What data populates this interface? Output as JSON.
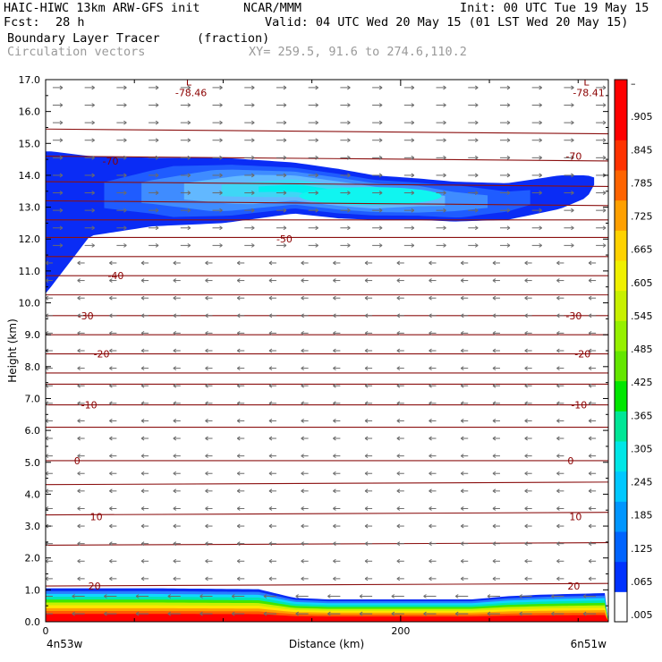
{
  "header": {
    "model": "HAIC-HIWC 13km ARW-GFS init",
    "org": "NCAR/MMM",
    "init": "Init: 00 UTC Tue 19 May 15",
    "fcst_label": "Fcst:",
    "fcst_value": "28 h",
    "valid": "Valid: 04 UTC Wed 20 May 15 (01 LST Wed 20 May 15)",
    "field": "Boundary Layer Tracer",
    "units": "(fraction)",
    "overlay": "Circulation vectors",
    "xy": "XY= 259.5, 91.6 to 274.6,110.2"
  },
  "chart_data": {
    "type": "heatmap",
    "xlabel": "Distance (km)",
    "ylabel": "Height (km)",
    "xlim": [
      0,
      317
    ],
    "ylim": [
      0,
      17
    ],
    "y_ticks": [
      "0.0",
      "1.0",
      "2.0",
      "3.0",
      "4.0",
      "5.0",
      "6.0",
      "7.0",
      "8.0",
      "9.0",
      "10.0",
      "11.0",
      "12.0",
      "13.0",
      "14.0",
      "15.0",
      "16.0",
      "17.0"
    ],
    "x_ticks": [
      {
        "value": 0,
        "label": "0"
      },
      {
        "value": 200,
        "label": "200"
      }
    ],
    "x_endpoints": {
      "left": "4n53w",
      "right": "6n51w"
    },
    "colorbar": {
      "labels": [
        ".005",
        ".065",
        ".125",
        ".185",
        ".245",
        ".305",
        ".365",
        ".425",
        ".485",
        ".545",
        ".605",
        ".665",
        ".725",
        ".785",
        ".845",
        ".905",
        "–"
      ],
      "colors": [
        "#ffffff",
        "#0032ff",
        "#0064ff",
        "#0096ff",
        "#00c8ff",
        "#00e6e6",
        "#00e696",
        "#00e600",
        "#64e600",
        "#96f000",
        "#c8f000",
        "#f0f000",
        "#ffd200",
        "#ffa000",
        "#ff6400",
        "#ff3200",
        "#ff0000",
        "#ff0000"
      ]
    },
    "tracer_regions": [
      {
        "name": "upper layer",
        "x_left": [
          0,
          3,
          25,
          60,
          100,
          140,
          165,
          185,
          210,
          230,
          260,
          290,
          305,
          311
        ],
        "top_km": [
          14.75,
          14.75,
          14.6,
          14.55,
          14.55,
          14.4,
          14.2,
          14.0,
          13.9,
          13.8,
          13.75,
          14.0,
          14.0,
          13.9
        ],
        "bottom_km": [
          10.3,
          10.5,
          12.1,
          12.4,
          12.5,
          12.8,
          12.65,
          12.6,
          12.6,
          12.55,
          12.6,
          12.95,
          13.3,
          13.9
        ],
        "core_value": 0.2
      },
      {
        "name": "boundary layer",
        "x_left": [
          0,
          60,
          120,
          140,
          160,
          200,
          240,
          260,
          280,
          317
        ],
        "top_km": [
          1.05,
          1.05,
          1.02,
          0.75,
          0.7,
          0.7,
          0.7,
          0.8,
          0.85,
          0.9
        ],
        "core_value": 0.9
      }
    ],
    "isotherms": [
      {
        "label": "-78.46",
        "x": 73,
        "y": 16.6,
        "low_marker": "L"
      },
      {
        "label": "-78.41",
        "x": 297,
        "y": 16.6,
        "low_marker": "L"
      },
      {
        "label": "-70",
        "x": 32,
        "y": 14.45
      },
      {
        "label": "-70",
        "x": 293,
        "y": 14.6
      },
      {
        "label": "-50",
        "x": 130,
        "y": 12.0
      },
      {
        "label": "-40",
        "x": 35,
        "y": 10.85
      },
      {
        "label": "-30",
        "x": 18,
        "y": 9.6
      },
      {
        "label": "-30",
        "x": 293,
        "y": 9.6
      },
      {
        "label": "-20",
        "x": 27,
        "y": 8.4
      },
      {
        "label": "-20",
        "x": 298,
        "y": 8.4
      },
      {
        "label": "-10",
        "x": 20,
        "y": 6.8
      },
      {
        "label": "-10",
        "x": 296,
        "y": 6.8
      },
      {
        "label": "0",
        "x": 16,
        "y": 5.05
      },
      {
        "label": "0",
        "x": 294,
        "y": 5.05
      },
      {
        "label": "10",
        "x": 25,
        "y": 3.3
      },
      {
        "label": "10",
        "x": 295,
        "y": 3.3
      },
      {
        "label": "20",
        "x": 24,
        "y": 1.12
      },
      {
        "label": "20",
        "x": 294,
        "y": 1.12
      }
    ],
    "isotherm_levels_km": [
      15.45,
      14.6,
      13.8,
      13.2,
      12.6,
      12.05,
      11.45,
      10.85,
      10.25,
      9.6,
      9.0,
      8.4,
      7.8,
      7.45,
      6.8,
      6.1,
      5.05,
      4.3,
      3.35,
      2.4,
      1.12
    ],
    "vectors": {
      "x_spacing_km": 18,
      "y_spacing_km": 0.55,
      "upper_direction": "east",
      "lower_direction": "west",
      "reversal_km": 11.8
    }
  }
}
